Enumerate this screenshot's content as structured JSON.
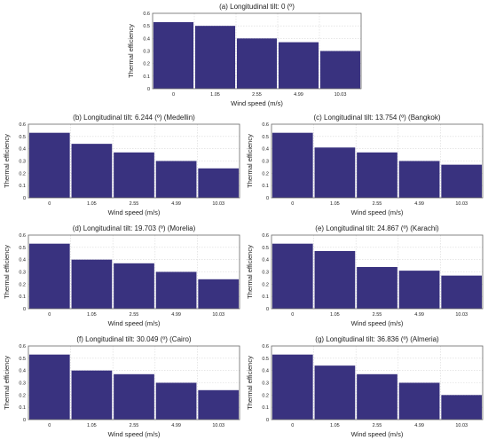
{
  "chart_data": [
    {
      "type": "bar",
      "title": "(a) Longitudinal tilt: 0 (º)",
      "xlabel": "Wind speed (m/s)",
      "ylabel": "Thermal efficiency",
      "categories": [
        "0",
        "1.05",
        "2.55",
        "4.99",
        "10.03"
      ],
      "values": [
        0.53,
        0.5,
        0.4,
        0.37,
        0.3
      ],
      "ylim": [
        0,
        0.6
      ],
      "yticks": [
        "0",
        "0.1",
        "0.2",
        "0.3",
        "0.4",
        "0.5",
        "0.6"
      ],
      "bar_color": "#39327f",
      "grid": true
    },
    {
      "type": "bar",
      "title": "(b) Longitudinal tilt: 6.244 (º) (Medellin)",
      "xlabel": "Wind speed (m/s)",
      "ylabel": "Thermal efficiency",
      "categories": [
        "0",
        "1.05",
        "2.55",
        "4.99",
        "10.03"
      ],
      "values": [
        0.53,
        0.44,
        0.37,
        0.3,
        0.24
      ],
      "ylim": [
        0,
        0.6
      ],
      "yticks": [
        "0",
        "0.1",
        "0.2",
        "0.3",
        "0.4",
        "0.5",
        "0.6"
      ],
      "bar_color": "#39327f",
      "grid": true
    },
    {
      "type": "bar",
      "title": "(c) Longitudinal tilt: 13.754 (º) (Bangkok)",
      "xlabel": "Wind speed (m/s)",
      "ylabel": "Thermal efficiency",
      "categories": [
        "0",
        "1.05",
        "2.55",
        "4.99",
        "10.03"
      ],
      "values": [
        0.53,
        0.41,
        0.37,
        0.3,
        0.27
      ],
      "ylim": [
        0,
        0.6
      ],
      "yticks": [
        "0",
        "0.1",
        "0.2",
        "0.3",
        "0.4",
        "0.5",
        "0.6"
      ],
      "bar_color": "#39327f",
      "grid": true
    },
    {
      "type": "bar",
      "title": "(d) Longitudinal tilt: 19.703 (º) (Morelia)",
      "xlabel": "Wind speed (m/s)",
      "ylabel": "Thermal efficiency",
      "categories": [
        "0",
        "1.05",
        "2.55",
        "4.99",
        "10.03"
      ],
      "values": [
        0.53,
        0.4,
        0.37,
        0.3,
        0.24
      ],
      "ylim": [
        0,
        0.6
      ],
      "yticks": [
        "0",
        "0.1",
        "0.2",
        "0.3",
        "0.4",
        "0.5",
        "0.6"
      ],
      "bar_color": "#39327f",
      "grid": true
    },
    {
      "type": "bar",
      "title": "(e) Longitudinal tilt: 24.867 (º) (Karachi)",
      "xlabel": "Wind speed (m/s)",
      "ylabel": "Thermal efficiency",
      "categories": [
        "0",
        "1.05",
        "2.55",
        "4.99",
        "10.03"
      ],
      "values": [
        0.53,
        0.47,
        0.34,
        0.31,
        0.27
      ],
      "ylim": [
        0,
        0.6
      ],
      "yticks": [
        "0",
        "0.1",
        "0.2",
        "0.3",
        "0.4",
        "0.5",
        "0.6"
      ],
      "bar_color": "#39327f",
      "grid": true
    },
    {
      "type": "bar",
      "title": "(f) Longitudinal tilt: 30.049 (º) (Cairo)",
      "xlabel": "Wind speed (m/s)",
      "ylabel": "Thermal efficiency",
      "categories": [
        "0",
        "1.05",
        "2.55",
        "4.99",
        "10.03"
      ],
      "values": [
        0.53,
        0.4,
        0.37,
        0.3,
        0.24
      ],
      "ylim": [
        0,
        0.6
      ],
      "yticks": [
        "0",
        "0.1",
        "0.2",
        "0.3",
        "0.4",
        "0.5",
        "0.6"
      ],
      "bar_color": "#39327f",
      "grid": true
    },
    {
      "type": "bar",
      "title": "(g) Longitudinal tilt: 36.836 (º) (Almeria)",
      "xlabel": "Wind speed (m/s)",
      "ylabel": "Thermal efficiency",
      "categories": [
        "0",
        "1.05",
        "2.55",
        "4.99",
        "10.03"
      ],
      "values": [
        0.53,
        0.44,
        0.37,
        0.3,
        0.2
      ],
      "ylim": [
        0,
        0.6
      ],
      "yticks": [
        "0",
        "0.1",
        "0.2",
        "0.3",
        "0.4",
        "0.5",
        "0.6"
      ],
      "bar_color": "#39327f",
      "grid": true
    }
  ]
}
